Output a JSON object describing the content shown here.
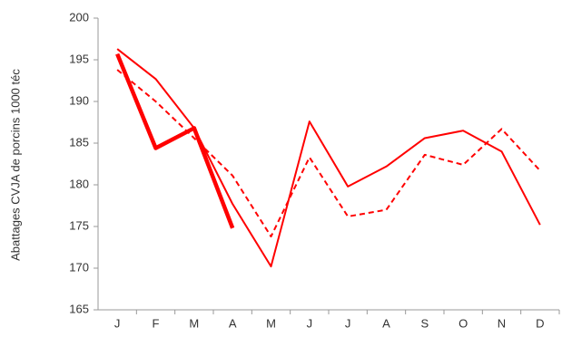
{
  "chart_data": {
    "type": "line",
    "y_label": "Abattages CVJA de porcins 1000 téc",
    "categories": [
      "J",
      "F",
      "M",
      "A",
      "M",
      "J",
      "J",
      "A",
      "S",
      "O",
      "N",
      "D"
    ],
    "series": [
      {
        "color": "#ff0000",
        "dash": "solid",
        "width": 2,
        "values": [
          196.3,
          192.7,
          186.8,
          177.7,
          170.2,
          187.6,
          179.8,
          182.2,
          185.6,
          186.5,
          184.0,
          175.2
        ]
      },
      {
        "color": "#ff0000",
        "dash": "dashed",
        "width": 2,
        "values": [
          193.8,
          190.0,
          185.6,
          181.1,
          173.8,
          183.3,
          176.2,
          177.0,
          183.6,
          182.4,
          186.7,
          181.7
        ]
      },
      {
        "color": "#ff0000",
        "dash": "solid",
        "width": 4.5,
        "values": [
          195.7,
          184.4,
          186.8,
          174.8,
          null,
          null,
          null,
          null,
          null,
          null,
          null,
          null
        ]
      }
    ],
    "ylim": [
      165,
      200
    ],
    "yticks": [
      165,
      170,
      175,
      180,
      185,
      190,
      195,
      200
    ],
    "grid": false
  }
}
